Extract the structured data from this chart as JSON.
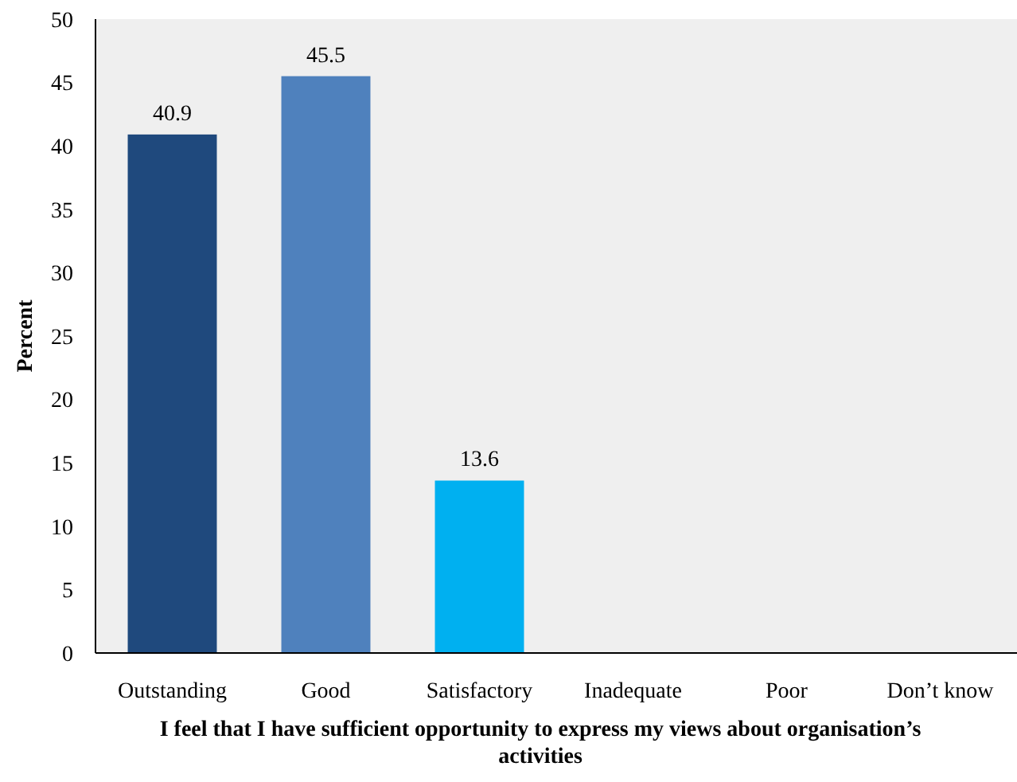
{
  "chart_data": {
    "type": "bar",
    "xlabel": "I feel that I have sufficient opportunity to express my views about organisation’s activities",
    "ylabel": "Percent",
    "categories": [
      "Outstanding",
      "Good",
      "Satisfactory",
      "Inadequate",
      "Poor",
      "Don’t know"
    ],
    "values": [
      40.9,
      45.5,
      13.6,
      0,
      0,
      0
    ],
    "colors": [
      "#1f497d",
      "#4f81bd",
      "#00b0f0",
      "#00b0f0",
      "#00b0f0",
      "#00b0f0"
    ],
    "value_labels": [
      "40.9",
      "45.5",
      "13.6",
      null,
      null,
      null
    ],
    "ylim": [
      0,
      50
    ],
    "yticks": [
      0,
      5,
      10,
      15,
      20,
      25,
      30,
      35,
      40,
      45,
      50
    ]
  }
}
